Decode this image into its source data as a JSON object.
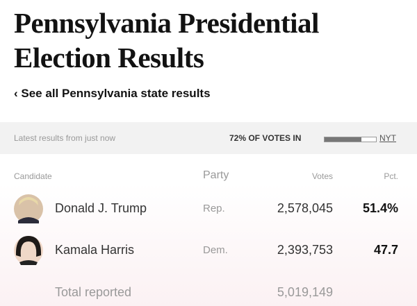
{
  "header": {
    "title": "Pennsylvania Presidential Election Results",
    "link": "See all Pennsylvania state results"
  },
  "status": {
    "updated": "Latest results from just now",
    "votes_in_label": "72% OF VOTES IN",
    "votes_in_pct": 72,
    "source": "NYT"
  },
  "table": {
    "columns": [
      "Candidate",
      "Party",
      "Votes",
      "Pct."
    ],
    "rows": [
      [
        "Donald J. Trump",
        "Rep.",
        "2,578,045",
        "51.4%"
      ],
      [
        "Kamala Harris",
        "Dem.",
        "2,393,753",
        "47.7"
      ]
    ],
    "total": [
      "Total reported",
      "5,019,149"
    ]
  }
}
